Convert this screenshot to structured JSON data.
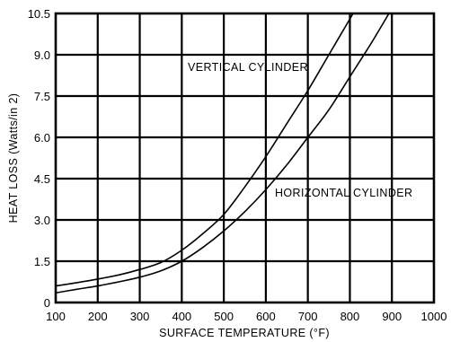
{
  "chart_data": {
    "type": "line",
    "xlabel": "SURFACE TEMPERATURE (°F)",
    "ylabel": "HEAT LOSS (Watts/in 2)",
    "xlim": [
      100,
      1000
    ],
    "ylim": [
      0,
      10.5
    ],
    "grid": true,
    "x_ticks": [
      "100",
      "200",
      "300",
      "400",
      "500",
      "600",
      "700",
      "800",
      "900",
      "1000"
    ],
    "y_ticks": [
      "0",
      "1.5",
      "3.0",
      "4.5",
      "6.0",
      "7.5",
      "9.0",
      "10.5"
    ],
    "series": [
      {
        "name": "VERTICAL CYLINDER",
        "x": [
          100,
          150,
          200,
          250,
          300,
          350,
          400,
          450,
          500,
          550,
          600,
          650,
          700,
          750,
          800,
          807
        ],
        "y": [
          0.6,
          0.72,
          0.85,
          1.0,
          1.2,
          1.45,
          1.9,
          2.5,
          3.2,
          4.2,
          5.3,
          6.5,
          7.7,
          9.0,
          10.3,
          10.5
        ]
      },
      {
        "name": "HORIZONTAL CYLINDER",
        "x": [
          100,
          150,
          200,
          250,
          300,
          350,
          400,
          450,
          500,
          550,
          600,
          650,
          700,
          750,
          800,
          850,
          893
        ],
        "y": [
          0.35,
          0.48,
          0.6,
          0.75,
          0.92,
          1.15,
          1.5,
          2.0,
          2.6,
          3.3,
          4.1,
          5.0,
          6.0,
          7.0,
          8.2,
          9.4,
          10.5
        ]
      }
    ]
  }
}
